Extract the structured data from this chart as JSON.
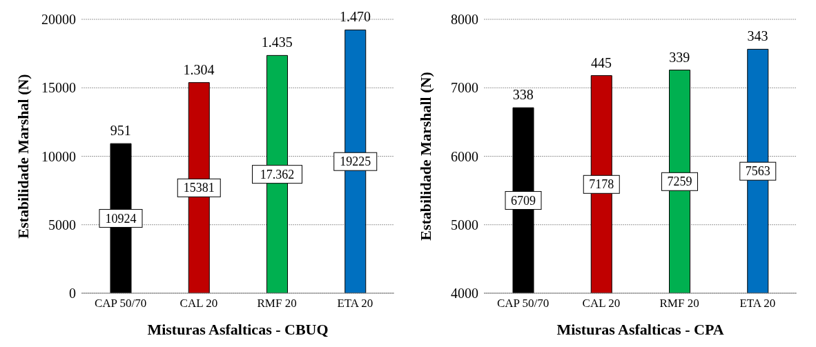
{
  "chart_data": [
    {
      "type": "bar",
      "xlabel": "Misturas Asfalticas - CBUQ",
      "ylabel": "Estabilidade Marshal (N)",
      "categories": [
        "CAP 50/70",
        "CAL 20",
        "RMF 20",
        "ETA 20"
      ],
      "values": [
        10924,
        15381,
        17362,
        19225
      ],
      "colors": [
        "#000000",
        "#c00000",
        "#00b050",
        "#0070c0"
      ],
      "value_labels": [
        "10924",
        "15381",
        "17.362",
        "19225"
      ],
      "ylim": [
        0,
        20000
      ],
      "yticks": [
        0,
        5000,
        10000,
        15000,
        20000
      ],
      "grid": "y",
      "legend": false,
      "annotations": [
        {
          "text": "951",
          "x": "CAP 50/70",
          "y": 10924
        },
        {
          "text": "1.304",
          "x": "CAL 20",
          "y": 15381
        },
        {
          "text": "1.435",
          "x": "RMF 20",
          "y": 17362
        },
        {
          "text": "1.470",
          "x": "ETA 20",
          "y": 19225
        }
      ]
    },
    {
      "type": "bar",
      "xlabel": "Misturas Asfalticas - CPA",
      "ylabel": "Estabilidade Marshall (N)",
      "categories": [
        "CAP 50/70",
        "CAL 20",
        "RMF 20",
        "ETA 20"
      ],
      "values": [
        6709,
        7178,
        7259,
        7563
      ],
      "colors": [
        "#000000",
        "#c00000",
        "#00b050",
        "#0070c0"
      ],
      "value_labels": [
        "6709",
        "7178",
        "7259",
        "7563"
      ],
      "ylim": [
        4000,
        8000
      ],
      "yticks": [
        4000,
        5000,
        6000,
        7000,
        8000
      ],
      "grid": "y",
      "legend": false,
      "annotations": [
        {
          "text": "338",
          "x": "CAP 50/70",
          "y": 6709
        },
        {
          "text": "445",
          "x": "CAL 20",
          "y": 7178
        },
        {
          "text": "339",
          "x": "RMF 20",
          "y": 7259
        },
        {
          "text": "343",
          "x": "ETA 20",
          "y": 7563
        }
      ]
    }
  ]
}
